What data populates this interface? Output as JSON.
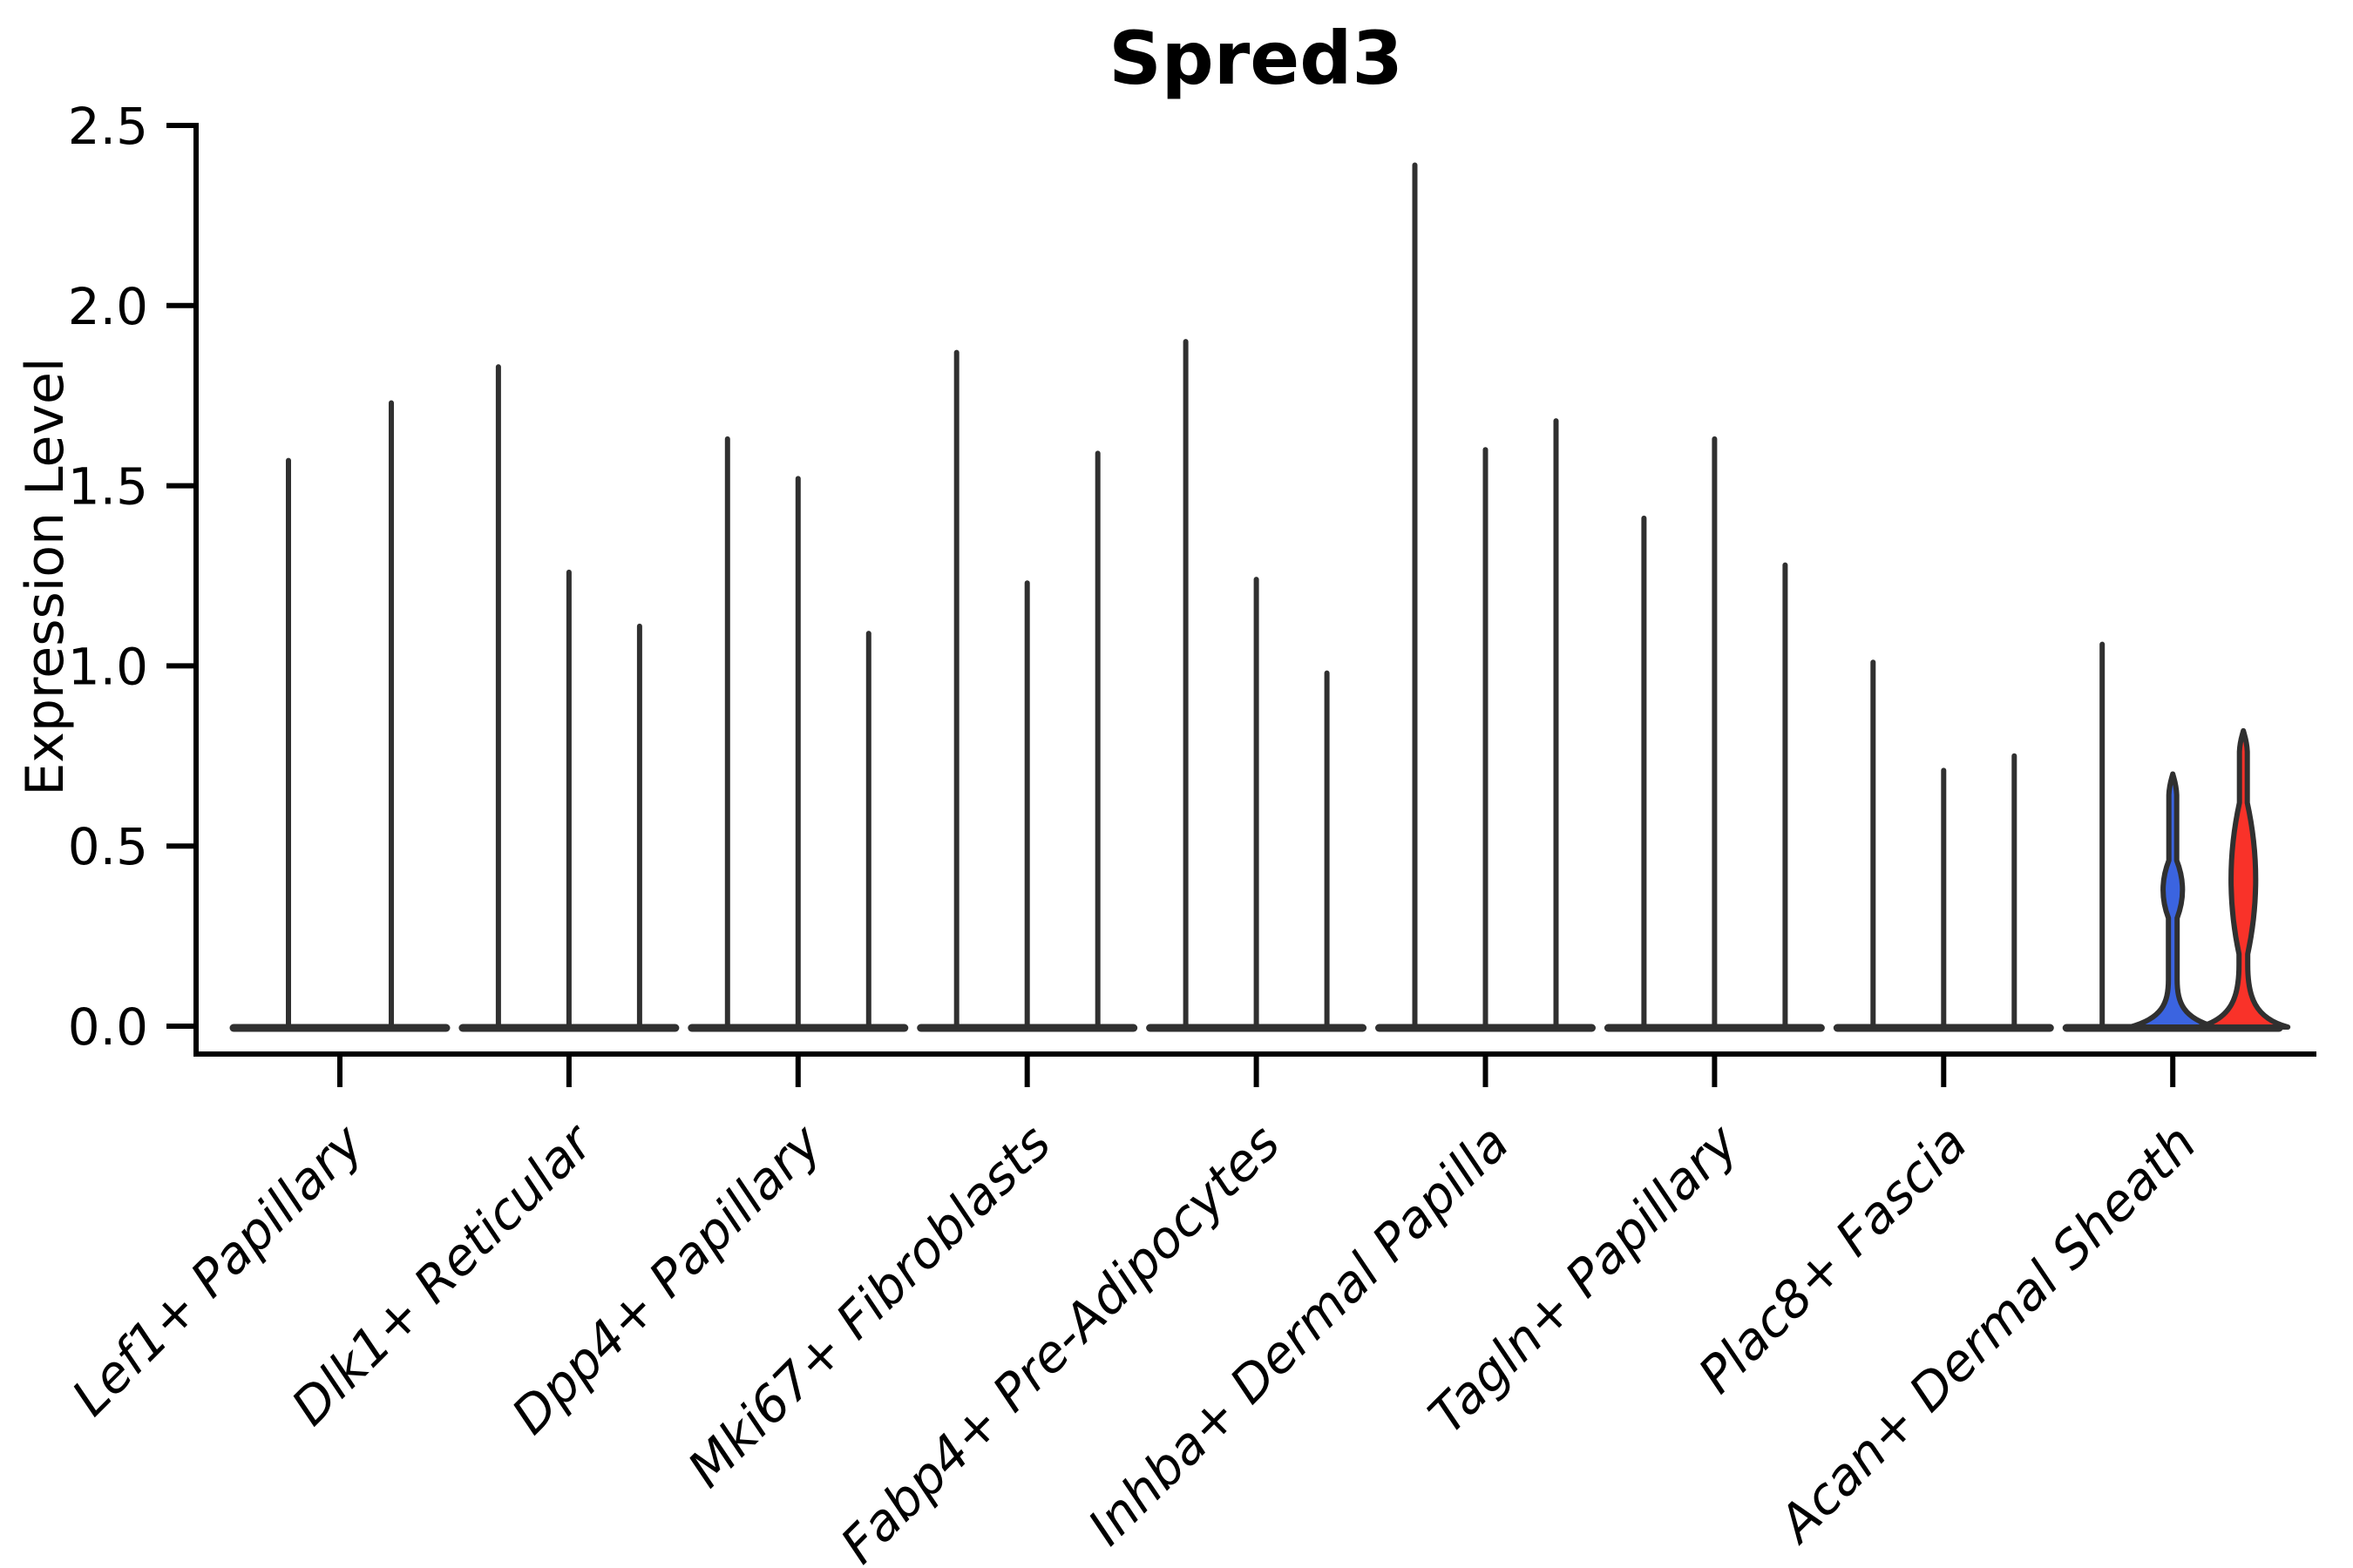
{
  "page": {
    "background": "#ffffff"
  },
  "chart_data": {
    "type": "violin",
    "title": "Spred3",
    "xlabel": "",
    "ylabel": "Expression Level",
    "ylim": [
      0,
      2.5
    ],
    "yticks": [
      0,
      0.5,
      1,
      1.5,
      2,
      2.5
    ],
    "ytick_labels": [
      "0.0",
      "0.5",
      "1.0",
      "1.5",
      "2.0",
      "2.5"
    ],
    "grid": false,
    "legend_position": "none",
    "categories": [
      "Lef1+ Papillary",
      "Dlk1+ Reticular",
      "Dpp4+ Papillary",
      "Mki67+ Fibroblasts",
      "Fabp4+ Pre-Adipocytes",
      "Inhba+ Dermal Papilla",
      "Tagln+ Papillary",
      "Plac8+ Fascia",
      "Acan+ Dermal Sheath"
    ],
    "series": [
      {
        "category": "Lef1+ Papillary",
        "violins": [
          {
            "max": 1.57
          },
          {
            "max": 1.73
          }
        ]
      },
      {
        "category": "Dlk1+ Reticular",
        "violins": [
          {
            "max": 1.83
          },
          {
            "max": 1.26
          },
          {
            "max": 1.11
          }
        ]
      },
      {
        "category": "Dpp4+ Papillary",
        "violins": [
          {
            "max": 1.63
          },
          {
            "max": 1.52
          },
          {
            "max": 1.09
          }
        ]
      },
      {
        "category": "Mki67+ Fibroblasts",
        "violins": [
          {
            "max": 1.87
          },
          {
            "max": 1.23
          },
          {
            "max": 1.59
          }
        ]
      },
      {
        "category": "Fabp4+ Pre-Adipocytes",
        "violins": [
          {
            "max": 1.9
          },
          {
            "max": 1.24
          },
          {
            "max": 0.98
          }
        ]
      },
      {
        "category": "Inhba+ Dermal Papilla",
        "violins": [
          {
            "max": 2.39
          },
          {
            "max": 1.6
          },
          {
            "max": 1.68
          }
        ]
      },
      {
        "category": "Tagln+ Papillary",
        "violins": [
          {
            "max": 1.41
          },
          {
            "max": 1.63
          },
          {
            "max": 1.28
          }
        ]
      },
      {
        "category": "Plac8+ Fascia",
        "violins": [
          {
            "max": 1.01
          },
          {
            "max": 0.71
          },
          {
            "max": 0.75
          }
        ]
      },
      {
        "category": "Acan+ Dermal Sheath",
        "violins": [
          {
            "max": 1.06
          },
          {
            "max": 0.7,
            "fill": "#3B64E0",
            "bulge": {
              "from": 0.3,
              "to": 0.46,
              "half_width": 11
            },
            "bell_top": 0.13,
            "bell_half_width": 49
          },
          {
            "max": 0.82,
            "fill": "#F93229",
            "bulge": {
              "from": 0.2,
              "to": 0.62,
              "half_width": 14
            },
            "bell_top": 0.17,
            "bell_half_width": 51
          }
        ]
      }
    ],
    "colors": {
      "axis": "#000000",
      "violin_outline": "#303030",
      "highlight_blue": "#3B64E0",
      "highlight_red": "#F93229"
    }
  }
}
